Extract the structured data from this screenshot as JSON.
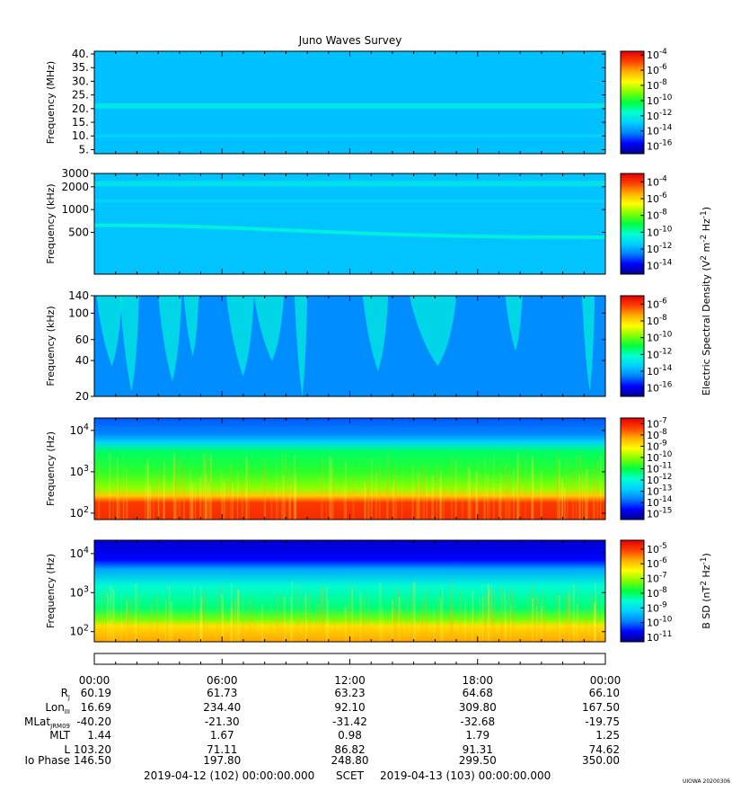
{
  "title": "Juno Waves Survey",
  "stamp": "UIOWA 20200306",
  "colors": {
    "colormap": [
      "#00008b",
      "#0000ff",
      "#0080ff",
      "#00d0ff",
      "#00ffd0",
      "#00ff40",
      "#80ff00",
      "#ffff00",
      "#ffb000",
      "#ff4000",
      "#e00000"
    ],
    "background_low": "#1050f0"
  },
  "chart_data": [
    {
      "type": "heatmap",
      "ylabel": "Frequency (MHz)",
      "yscale": "linear",
      "ylim": [
        3.5,
        41
      ],
      "yticks": [
        {
          "value": 40,
          "label": "40."
        },
        {
          "value": 35,
          "label": "35."
        },
        {
          "value": 30,
          "label": "30."
        },
        {
          "value": 25,
          "label": "25."
        },
        {
          "value": 20,
          "label": "20."
        },
        {
          "value": 15,
          "label": "15."
        },
        {
          "value": 10,
          "label": "10."
        },
        {
          "value": 5,
          "label": "5."
        }
      ],
      "colorbar": {
        "ticks": [
          {
            "value": -4,
            "label": "10^-4"
          },
          {
            "value": -6,
            "label": "10^-6"
          },
          {
            "value": -8,
            "label": "10^-8"
          },
          {
            "value": -10,
            "label": "10^-10"
          },
          {
            "value": -12,
            "label": "10^-12"
          },
          {
            "value": -14,
            "label": "10^-14"
          },
          {
            "value": -16,
            "label": "10^-16"
          }
        ],
        "range": [
          -17,
          -3.5
        ]
      },
      "background_level": -13.2,
      "bands": [
        {
          "y": 21,
          "width": 1.8,
          "level": -12.1
        },
        {
          "y": 10,
          "width": 1.2,
          "level": -12.8
        }
      ]
    },
    {
      "type": "heatmap",
      "ylabel": "Frequency (kHz)",
      "yscale": "log",
      "ylim": [
        140,
        3000
      ],
      "yticks": [
        {
          "value": 3000,
          "label": "3000"
        },
        {
          "value": 2000,
          "label": "2000"
        },
        {
          "value": 1000,
          "label": "1000"
        },
        {
          "value": 500,
          "label": "500"
        }
      ],
      "colorbar": {
        "ticks": [
          {
            "value": -4,
            "label": "10^-4"
          },
          {
            "value": -6,
            "label": "10^-6"
          },
          {
            "value": -8,
            "label": "10^-8"
          },
          {
            "value": -10,
            "label": "10^-10"
          },
          {
            "value": -12,
            "label": "10^-12"
          },
          {
            "value": -14,
            "label": "10^-14"
          }
        ],
        "range": [
          -15,
          -3
        ],
        "label": "Electric Spectral Density (V^2 m^-2 Hz^-1)"
      },
      "background_level": -11.6,
      "bands": [
        {
          "y": 2200,
          "width_dec": 0.035,
          "level": -10.8
        },
        {
          "y": 1300,
          "width_dec": 0.02,
          "level": -11.2
        },
        {
          "y_start": 620,
          "y_end": 430,
          "width_dec": 0.04,
          "level": -10.4
        }
      ]
    },
    {
      "type": "heatmap",
      "ylabel": "Frequency (kHz)",
      "yscale": "log",
      "ylim": [
        20,
        140
      ],
      "yticks": [
        {
          "value": 140,
          "label": "140"
        },
        {
          "value": 100,
          "label": "100"
        },
        {
          "value": 60,
          "label": "60"
        },
        {
          "value": 40,
          "label": "40"
        },
        {
          "value": 20,
          "label": "20"
        }
      ],
      "colorbar": {
        "ticks": [
          {
            "value": -6,
            "label": "10^-6"
          },
          {
            "value": -8,
            "label": "10^-8"
          },
          {
            "value": -10,
            "label": "10^-10"
          },
          {
            "value": -12,
            "label": "10^-12"
          },
          {
            "value": -14,
            "label": "10^-14"
          },
          {
            "value": -16,
            "label": "10^-16"
          }
        ],
        "range": [
          -17,
          -5
        ]
      },
      "background_level": -14.4,
      "emission_level": -12.6,
      "emissions_hours": [
        {
          "t": 0.1,
          "w": 1.2,
          "depth": 70
        },
        {
          "t": 1.2,
          "w": 0.9,
          "depth": 95
        },
        {
          "t": 3.0,
          "w": 1.1,
          "depth": 85
        },
        {
          "t": 4.2,
          "w": 0.7,
          "depth": 60
        },
        {
          "t": 6.2,
          "w": 1.3,
          "depth": 80
        },
        {
          "t": 7.5,
          "w": 1.4,
          "depth": 65
        },
        {
          "t": 9.4,
          "w": 0.6,
          "depth": 100
        },
        {
          "t": 12.6,
          "w": 1.2,
          "depth": 75
        },
        {
          "t": 14.8,
          "w": 2.2,
          "depth": 70
        },
        {
          "t": 19.3,
          "w": 0.8,
          "depth": 55
        },
        {
          "t": 22.9,
          "w": 0.6,
          "depth": 95
        }
      ]
    },
    {
      "type": "heatmap",
      "ylabel": "Frequency (Hz)",
      "yscale": "log",
      "ylim": [
        70,
        20000
      ],
      "yticks": [
        {
          "value": 10000,
          "label": "10^4"
        },
        {
          "value": 1000,
          "label": "10^3"
        },
        {
          "value": 100,
          "label": "10^2"
        }
      ],
      "colorbar": {
        "ticks": [
          {
            "value": -7,
            "label": "10^-7"
          },
          {
            "value": -8,
            "label": "10^-8"
          },
          {
            "value": -9,
            "label": "10^-9"
          },
          {
            "value": -10,
            "label": "10^-10"
          },
          {
            "value": -11,
            "label": "10^-11"
          },
          {
            "value": -12,
            "label": "10^-12"
          },
          {
            "value": -13,
            "label": "10^-13"
          },
          {
            "value": -14,
            "label": "10^-14"
          },
          {
            "value": -15,
            "label": "10^-15"
          }
        ],
        "range": [
          -15.5,
          -6.5
        ]
      },
      "profile": [
        {
          "f": 70,
          "level": -7.1
        },
        {
          "f": 180,
          "level": -7.3
        },
        {
          "f": 260,
          "level": -8.6
        },
        {
          "f": 400,
          "level": -10.0
        },
        {
          "f": 1000,
          "level": -10.7
        },
        {
          "f": 3000,
          "level": -11.2
        },
        {
          "f": 5000,
          "level": -12.6
        },
        {
          "f": 8000,
          "level": -13.6
        },
        {
          "f": 20000,
          "level": -14.0
        }
      ]
    },
    {
      "type": "heatmap",
      "ylabel": "Frequency (Hz)",
      "yscale": "log",
      "ylim": [
        55,
        22000
      ],
      "yticks": [
        {
          "value": 10000,
          "label": "10^4"
        },
        {
          "value": 1000,
          "label": "10^3"
        },
        {
          "value": 100,
          "label": "10^2"
        }
      ],
      "colorbar": {
        "ticks": [
          {
            "value": -5,
            "label": "10^-5"
          },
          {
            "value": -6,
            "label": "10^-6"
          },
          {
            "value": -7,
            "label": "10^-7"
          },
          {
            "value": -8,
            "label": "10^-8"
          },
          {
            "value": -9,
            "label": "10^-9"
          },
          {
            "value": -10,
            "label": "10^-10"
          },
          {
            "value": -11,
            "label": "10^-11"
          }
        ],
        "range": [
          -11.3,
          -4.4
        ],
        "label": "B SD (nT^2 Hz^-1)"
      },
      "profile": [
        {
          "f": 55,
          "level": -5.7
        },
        {
          "f": 140,
          "level": -6.2
        },
        {
          "f": 200,
          "level": -7.2
        },
        {
          "f": 400,
          "level": -8.1
        },
        {
          "f": 1500,
          "level": -8.6
        },
        {
          "f": 4000,
          "level": -9.6
        },
        {
          "f": 7000,
          "level": -10.6
        },
        {
          "f": 22000,
          "level": -10.9
        }
      ]
    }
  ],
  "time_axis": {
    "hours_range": [
      0,
      24
    ],
    "labels": [
      {
        "h": 0,
        "label": "00:00"
      },
      {
        "h": 6,
        "label": "06:00"
      },
      {
        "h": 12,
        "label": "12:00"
      },
      {
        "h": 18,
        "label": "18:00"
      },
      {
        "h": 24,
        "label": "00:00"
      }
    ]
  },
  "ephemeris": {
    "row_labels": [
      "R_J",
      "Lon_III",
      "MLat_JRM09",
      "MLT",
      "L",
      "Io Phase"
    ],
    "rows": [
      [
        "60.19",
        "61.73",
        "63.23",
        "64.68",
        "66.10"
      ],
      [
        "16.69",
        "234.40",
        "92.10",
        "309.80",
        "167.50"
      ],
      [
        "-40.20",
        "-21.30",
        "-31.42",
        "-32.68",
        "-19.75"
      ],
      [
        "1.44",
        "1.67",
        "0.98",
        "1.79",
        "1.25"
      ],
      [
        "103.20",
        "71.11",
        "86.82",
        "91.31",
        "74.62"
      ],
      [
        "146.50",
        "197.80",
        "248.80",
        "299.50",
        "350.00"
      ]
    ]
  },
  "footer": {
    "start": "2019-04-12 (102) 00:00:00.000",
    "scet": "SCET",
    "end": "2019-04-13 (103) 00:00:00.000"
  }
}
